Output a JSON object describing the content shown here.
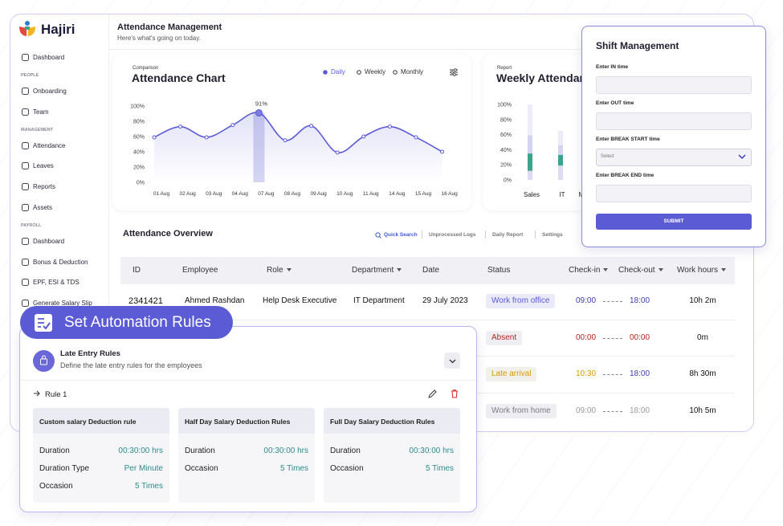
{
  "sidebar": {
    "brand": "Hajiri",
    "nav": [
      {
        "items": [
          "Dashboard"
        ]
      },
      {
        "heading": "PEOPLE",
        "items": [
          "Onboarding",
          "Team"
        ]
      },
      {
        "heading": "MANAGEMENT",
        "items": [
          "Attendance",
          "Leaves",
          "Reports",
          "Assets"
        ]
      },
      {
        "heading": "PAYROLL",
        "items": [
          "Dashboard",
          "Bonus & Deduction",
          "EPF, ESI & TDS",
          "Generate Salary Slip"
        ]
      }
    ]
  },
  "header": {
    "title": "Attendance Management",
    "subtitle": "Here's what's going on today."
  },
  "chart_data": [
    {
      "type": "line",
      "eyebrow": "Comparison",
      "title": "Attendance Chart",
      "toggles": [
        "Daily",
        "Weekly",
        "Monthly"
      ],
      "categories": [
        "01 Aug",
        "02 Aug",
        "03 Aug",
        "04 Aug",
        "07 Aug",
        "08 Aug",
        "09 Aug",
        "10 Aug",
        "11 Aug",
        "14 Aug",
        "15 Aug",
        "16 Aug"
      ],
      "values": [
        59,
        73,
        59,
        75,
        91,
        55,
        74,
        39,
        60,
        73,
        59,
        40
      ],
      "value_labels": [
        null,
        null,
        null,
        null,
        "91%",
        null,
        null,
        null,
        null,
        null,
        null,
        null
      ],
      "color": "#5b5bd6",
      "ylim": [
        0,
        100
      ],
      "yticks": [
        {
          "value": 0,
          "label": "0%"
        },
        {
          "value": 20,
          "label": "20%"
        },
        {
          "value": 40,
          "label": "40%"
        },
        {
          "value": 60,
          "label": "60%"
        },
        {
          "value": 80,
          "label": "80%"
        },
        {
          "value": 100,
          "label": "100%"
        }
      ]
    },
    {
      "type": "stacked_bar",
      "eyebrow": "Report",
      "title": "Weekly Attendance",
      "categories": [
        "Sales",
        "IT",
        "Marketing"
      ],
      "series": [
        {
          "color": "#dcdbf3",
          "values": [
            12,
            19,
            null
          ]
        },
        {
          "color": "#3aa58c",
          "values": [
            23,
            14,
            null
          ]
        },
        {
          "color": "#d4d3f2",
          "values": [
            24,
            13,
            null
          ]
        },
        {
          "color": "#ecebf8",
          "values": [
            41,
            19,
            null
          ]
        }
      ],
      "ylim": [
        0,
        100
      ],
      "yticks": [
        {
          "value": 0,
          "label": "0%"
        },
        {
          "value": 20,
          "label": "20%"
        },
        {
          "value": 40,
          "label": "40%"
        },
        {
          "value": 60,
          "label": "60%"
        },
        {
          "value": 80,
          "label": "80%"
        },
        {
          "value": 100,
          "label": "100%"
        }
      ]
    }
  ],
  "overview": {
    "title": "Attendance Overview",
    "actions": [
      "Quick Search",
      "Unprocessed Logs",
      "Daily Report",
      "Settings"
    ],
    "columns": [
      "ID",
      "Employee",
      "Role",
      "Department",
      "Date",
      "Status",
      "Check-in",
      "Check-out",
      "Work hours"
    ],
    "rows": [
      {
        "id": "2341421",
        "employee": "Ahmed Rashdan",
        "role": "Help Desk Executive",
        "department": "IT Department",
        "date": "29 July 2023",
        "status": "Work from office",
        "check_in": "09:00",
        "check_out": "18:00",
        "hours": "10h 2m"
      },
      {
        "status": "Absent",
        "check_in": "00:00",
        "check_out": "00:00",
        "hours": "0m"
      },
      {
        "status": "Late arrival",
        "check_in": "10:30",
        "check_out": "18:00",
        "hours": "8h 30m"
      },
      {
        "status": "Work from home",
        "check_in": "09:00",
        "check_out": "18:00",
        "hours": "10h 5m"
      }
    ]
  },
  "shift": {
    "title": "Shift Management",
    "fields": [
      {
        "label": "Enter IN time"
      },
      {
        "label": "Enter OUT time"
      },
      {
        "label": "Enter BREAK START time",
        "placeholder": "Select"
      },
      {
        "label": "Enter BREAK END time"
      }
    ],
    "submit": "SUBMIT"
  },
  "automation": {
    "badge": "Set Automation Rules",
    "rule_title": "Late Entry Rules",
    "rule_desc": "Define the late entry rules for the employees",
    "rule_name": "Rule 1",
    "cards": [
      {
        "title": "Custom salary Deduction rule",
        "rows": [
          [
            "Duration",
            "00:30:00 hrs"
          ],
          [
            "Duration Type",
            "Per Minute"
          ],
          [
            "Occasion",
            "5 Times"
          ]
        ]
      },
      {
        "title": "Half Day Salary Deduction Rules",
        "rows": [
          [
            "Duration",
            "00:30:00 hrs"
          ],
          [
            "Occasion",
            "5 Times"
          ]
        ]
      },
      {
        "title": "Full Day Salary Deduction Rules",
        "rows": [
          [
            "Duration",
            "00:30:00 hrs"
          ],
          [
            "Occasion",
            "5 Times"
          ]
        ]
      }
    ]
  }
}
